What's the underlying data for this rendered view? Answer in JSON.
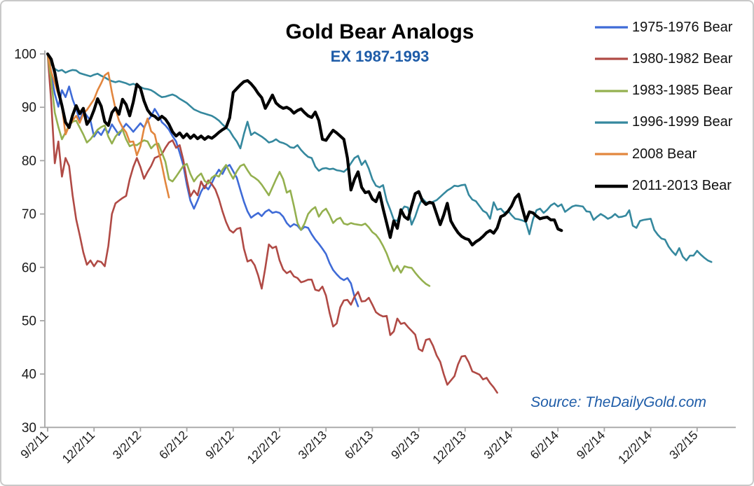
{
  "title": "Gold Bear Analogs",
  "subtitle": "EX 1987-1993",
  "source_note": "Source: TheDailyGold.com",
  "colors": {
    "title_text": "#000000",
    "subtitle_text": "#1E5CA8",
    "source_text": "#1E5CA8",
    "axis_line": "#A6A6A6",
    "tick_text": "#1A1A1A",
    "border": "#C9C9C9"
  },
  "chart_data": {
    "type": "line",
    "title": "Gold Bear Analogs",
    "subtitle": "EX 1987-1993",
    "x_unit": "weekly points, 13 weeks per axis tick",
    "x_tick_labels": [
      "9/2/11",
      "12/2/11",
      "3/2/12",
      "6/2/12",
      "9/2/12",
      "12/2/12",
      "3/2/13",
      "6/2/13",
      "9/2/13",
      "12/2/13",
      "3/2/14",
      "6/2/14",
      "9/2/14",
      "12/2/14",
      "3/2/15"
    ],
    "y_ticks": [
      100,
      90,
      80,
      70,
      60,
      50,
      40,
      30
    ],
    "ylim": [
      30,
      100
    ],
    "grid": false,
    "legend_position": "top-right",
    "series": [
      {
        "name": "1975-1976 Bear",
        "color": "#3F6BD7",
        "line_width": 2.6,
        "values": [
          100,
          96,
          92.5,
          90.1,
          93.2,
          91.9,
          93.9,
          91.5,
          89.7,
          87.5,
          89.3,
          88.4,
          87.5,
          84.5,
          85.5,
          84.8,
          86,
          85.2,
          86.8,
          85.8,
          84.8,
          86,
          86.9,
          86.2,
          85.4,
          86.2,
          87,
          86.2,
          87.5,
          88.3,
          89.7,
          88.6,
          87.2,
          86.6,
          85.8,
          84.6,
          83.6,
          81.5,
          79.2,
          75.5,
          72.5,
          71,
          72.5,
          74.2,
          75.3,
          74.6,
          75.8,
          77.2,
          78.3,
          77.5,
          78.8,
          79.2,
          78,
          76.8,
          74.5,
          72.3,
          70.5,
          69.3,
          69.8,
          70.2,
          69.6,
          70.4,
          70.8,
          70.2,
          70.4,
          70.2,
          69.5,
          68.3,
          67.6,
          68.1,
          67.8,
          67,
          67.6,
          67.4,
          66.2,
          65.2,
          64.4,
          63.5,
          62.5,
          60.8,
          59.5,
          58.7,
          58,
          57.6,
          58,
          57,
          54.5,
          52.7
        ]
      },
      {
        "name": "1980-1982 Bear",
        "color": "#B04A45",
        "line_width": 2.6,
        "values": [
          100,
          91,
          79.5,
          83.6,
          77,
          80.5,
          79,
          73.5,
          69,
          66,
          62.8,
          60.5,
          61.3,
          60.2,
          61.2,
          61,
          60.2,
          64,
          70,
          72,
          72.5,
          73,
          73.4,
          76.5,
          78.8,
          80.5,
          78.8,
          76.6,
          77.9,
          79,
          80.5,
          80.8,
          81.2,
          82.4,
          83.4,
          83.8,
          82.4,
          82.9,
          80.2,
          76.4,
          73.3,
          74.4,
          73.5,
          76.1,
          74.8,
          76.3,
          75.6,
          74.6,
          72.8,
          70.5,
          68.5,
          67,
          66.5,
          67.2,
          67.4,
          63.5,
          61.1,
          61.4,
          60.4,
          58.5,
          56,
          59.9,
          64.3,
          63.6,
          63.9,
          61.3,
          59.6,
          58.9,
          59.3,
          58.3,
          58,
          57.2,
          57.4,
          57.7,
          57.7,
          55.8,
          55.6,
          56.4,
          54.7,
          51.5,
          48.9,
          49.5,
          52.5,
          53.8,
          53.9,
          53,
          54.5,
          55.4,
          53.6,
          53.7,
          54.3,
          53,
          51.6,
          51.1,
          50.8,
          50.9,
          47.3,
          48,
          50.4,
          49.4,
          49.6,
          48.8,
          48.1,
          47.4,
          44.7,
          44.3,
          46.4,
          46.6,
          45.3,
          43.5,
          42.3,
          40,
          38,
          38.8,
          39.6,
          41.8,
          43.3,
          43.4,
          42.2,
          40.5,
          40.2,
          39.9,
          39,
          39.3,
          38.3,
          37.5,
          36.5
        ]
      },
      {
        "name": "1983-1985 Bear",
        "color": "#94B04F",
        "line_width": 2.6,
        "values": [
          100,
          95,
          89,
          86.3,
          84,
          85.3,
          86.6,
          87.3,
          87.5,
          86.2,
          84.9,
          83.4,
          84,
          84.9,
          85.8,
          86.3,
          86.6,
          84.5,
          83.2,
          84.5,
          85.3,
          85.8,
          84,
          82.7,
          83,
          82.9,
          83.4,
          83.8,
          83.6,
          82.3,
          83,
          83.2,
          81.5,
          79.8,
          76.5,
          76.1,
          77,
          78,
          79,
          79.4,
          77.5,
          76.1,
          77,
          77.6,
          76.2,
          75.7,
          76.8,
          77.3,
          77,
          78.3,
          79.2,
          77.8,
          76.6,
          78,
          79,
          79.3,
          78.2,
          77.2,
          76.8,
          76.3,
          75.5,
          74.5,
          73.5,
          75,
          76.5,
          77.9,
          76.5,
          74,
          74.4,
          71.5,
          68.3,
          67,
          68.2,
          70,
          70.8,
          71.3,
          69.5,
          70.5,
          71,
          69.8,
          68.3,
          69,
          69.3,
          68.2,
          68,
          68.3,
          68.1,
          68,
          67.9,
          68.2,
          67.5,
          66.6,
          66.1,
          65.2,
          64,
          62.6,
          60.8,
          59.3,
          60.3,
          59,
          60.2,
          60,
          59.9,
          59,
          58.2,
          57.5,
          56.9,
          56.5
        ]
      },
      {
        "name": "1996-1999 Bear",
        "color": "#35889E",
        "line_width": 2.6,
        "values": [
          100,
          98,
          97.2,
          96.8,
          97,
          96.5,
          96.8,
          97,
          96.9,
          96.4,
          96.2,
          96,
          95.8,
          96.1,
          96.3,
          95.9,
          95.6,
          95.2,
          94.9,
          94.7,
          94.9,
          94.7,
          94.5,
          94.2,
          94.4,
          94.1,
          93.8,
          93.5,
          93.4,
          93.2,
          92.8,
          92.3,
          91.9,
          92,
          92.2,
          92.4,
          92.1,
          91.6,
          91.2,
          90.8,
          90.2,
          89.6,
          89.3,
          89,
          88.8,
          88.6,
          88.4,
          88,
          87.5,
          86.8,
          86.2,
          85.6,
          84.5,
          83.6,
          82.3,
          85,
          87.3,
          84.8,
          85.3,
          84.9,
          84.5,
          84,
          83.4,
          83.6,
          84,
          83.5,
          83.3,
          83,
          82.5,
          82.4,
          82.9,
          82,
          81.3,
          80.7,
          80.5,
          78.9,
          78.1,
          78.5,
          78.6,
          78.4,
          78.5,
          78.2,
          78.1,
          77.9,
          78.5,
          79.5,
          80.5,
          80.9,
          79.2,
          80,
          78.5,
          76.5,
          75.3,
          75,
          75.4,
          72.5,
          70.8,
          68.9,
          68.7,
          70.5,
          71.4,
          71.2,
          68,
          69.5,
          71.5,
          72.9,
          72.2,
          72,
          72.3,
          72.6,
          73.2,
          73.8,
          74.4,
          74.8,
          75.3,
          75.2,
          75.4,
          75.5,
          73.6,
          72.7,
          72.4,
          71.5,
          70.6,
          70.2,
          69.1,
          72.2,
          70.8,
          71,
          70.2,
          70.6,
          69.8,
          69.1,
          69,
          68.8,
          68.5,
          66.2,
          69,
          70.7,
          71,
          70.2,
          70.8,
          71.6,
          72,
          71.4,
          71.8,
          70.4,
          70.9,
          71.4,
          71.6,
          71.5,
          71.4,
          70.5,
          70.4,
          68.9,
          69.5,
          70,
          69.6,
          69.1,
          69.4,
          70,
          69.4,
          69.5,
          69.7,
          70.7,
          67.8,
          67.4,
          68.7,
          68.9,
          69,
          69.1,
          67,
          66.1,
          65.4,
          65.2,
          63.9,
          63,
          62.3,
          63.6,
          62,
          61.3,
          62.2,
          62.2,
          63.1,
          62.4,
          61.8,
          61.3,
          61
        ]
      },
      {
        "name": "2008 Bear",
        "color": "#E2863E",
        "line_width": 2.6,
        "values": [
          100,
          96.7,
          94.5,
          92.4,
          90.2,
          84.9,
          86.5,
          87.5,
          88.4,
          87.1,
          88.8,
          89.5,
          90.5,
          91.5,
          93.2,
          94.5,
          96,
          96.5,
          92.8,
          89.7,
          87.5,
          86.2,
          85.3,
          83.5,
          83.6,
          81,
          82.7,
          86,
          87.9,
          85.5,
          84.9,
          82,
          79.2,
          76,
          73.1
        ]
      },
      {
        "name": "2011-2013 Bear",
        "color": "#000000",
        "line_width": 4.2,
        "values": [
          100,
          99,
          96.5,
          93,
          90.3,
          87.2,
          86.2,
          88.5,
          90.3,
          88.8,
          89.8,
          86.8,
          87.8,
          89.5,
          91.6,
          90.2,
          87.3,
          86.6,
          89,
          89.9,
          88.7,
          91.5,
          90.5,
          88.4,
          91,
          94.3,
          93.6,
          91.2,
          89.5,
          88.6,
          88.3,
          87.7,
          88.3,
          87.8,
          86.8,
          85.4,
          84.6,
          85.2,
          84.3,
          85,
          84.2,
          84.8,
          84.1,
          84.6,
          84,
          84.5,
          84.2,
          84.7,
          85.3,
          85.8,
          86.2,
          88,
          92.8,
          93.5,
          94.2,
          94.8,
          95,
          94.4,
          93.6,
          92.6,
          91.8,
          89.8,
          91,
          92.3,
          90.8,
          90.2,
          89.8,
          90,
          89.6,
          88.9,
          89.4,
          89.7,
          89,
          88.4,
          88.1,
          89.1,
          87.5,
          84,
          83.8,
          84.8,
          85.7,
          85.2,
          84.6,
          84,
          80.5,
          74.5,
          76.5,
          77.9,
          75,
          74,
          74.2,
          72.8,
          72.3,
          74,
          71,
          68.3,
          65.6,
          68.7,
          67.3,
          70.8,
          69.5,
          69,
          71.5,
          73.8,
          74.2,
          72.5,
          71.8,
          72.2,
          72,
          70,
          68,
          69.8,
          72,
          68.7,
          67.5,
          66.5,
          65.8,
          65.4,
          65.2,
          64.2,
          64.8,
          65.2,
          65.8,
          66.5,
          66.9,
          66.4,
          67.4,
          69.5,
          69.8,
          70.5,
          71.5,
          73,
          73.7,
          71.1,
          68.7,
          70.4,
          70.2,
          69.6,
          69.1,
          69.3,
          69.4,
          68.9,
          68.9,
          67.2,
          66.9
        ]
      }
    ]
  }
}
